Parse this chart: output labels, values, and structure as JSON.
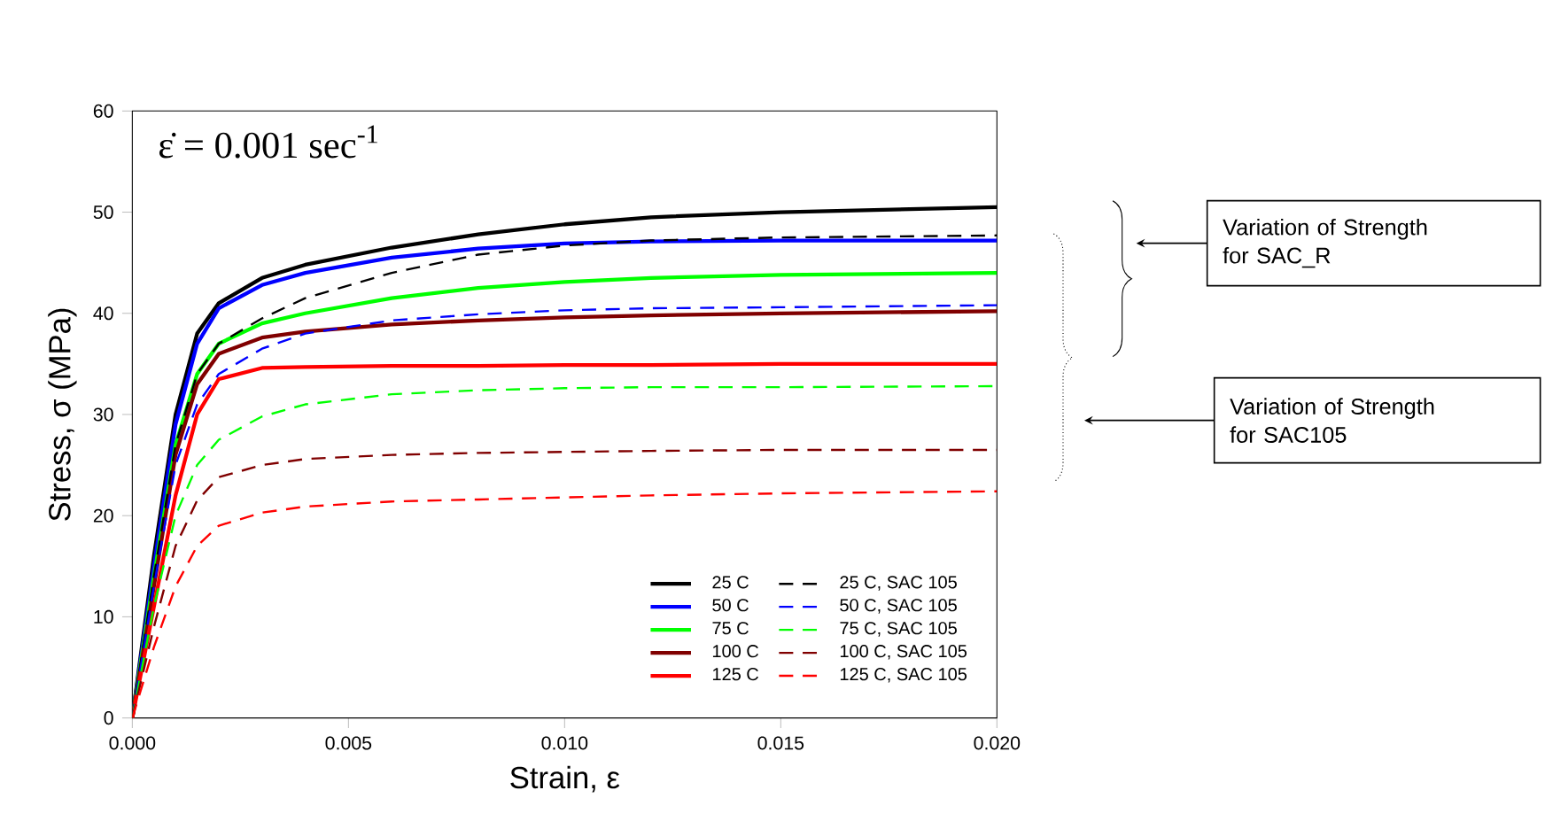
{
  "chart_data": {
    "type": "line",
    "xlabel": "Strain, ε",
    "ylabel": "Stress, σ (MPa)",
    "x": [
      0,
      0.0005,
      0.001,
      0.0015,
      0.002,
      0.003,
      0.004,
      0.006,
      0.008,
      0.01,
      0.012,
      0.015,
      0.02
    ],
    "series": [
      {
        "name": "25 C",
        "color": "#000000",
        "line_style": "solid",
        "values": [
          0,
          16,
          30,
          38,
          41,
          43.5,
          44.8,
          46.5,
          47.8,
          48.8,
          49.5,
          50,
          50.5
        ]
      },
      {
        "name": "50 C",
        "color": "#0000ff",
        "line_style": "solid",
        "values": [
          0,
          15,
          29,
          37,
          40.5,
          42.8,
          44,
          45.5,
          46.4,
          46.9,
          47.1,
          47.2,
          47.2
        ]
      },
      {
        "name": "75 C",
        "color": "#00ff00",
        "line_style": "solid",
        "values": [
          0,
          14,
          27,
          34,
          37,
          39,
          40,
          41.5,
          42.5,
          43.1,
          43.5,
          43.8,
          44
        ]
      },
      {
        "name": "100 C",
        "color": "#800000",
        "line_style": "solid",
        "values": [
          0,
          13,
          26,
          33,
          36,
          37.6,
          38.2,
          38.9,
          39.3,
          39.6,
          39.8,
          40,
          40.2
        ]
      },
      {
        "name": "125 C",
        "color": "#ff0000",
        "line_style": "solid",
        "values": [
          0,
          11,
          22,
          30,
          33.5,
          34.6,
          34.7,
          34.8,
          34.8,
          34.9,
          34.9,
          35,
          35
        ]
      },
      {
        "name": "25 C, SAC 105",
        "color": "#000000",
        "line_style": "dashed",
        "values": [
          0,
          14,
          27,
          34,
          37,
          39.5,
          41.5,
          44,
          45.8,
          46.7,
          47.2,
          47.5,
          47.7
        ]
      },
      {
        "name": "50 C, SAC 105",
        "color": "#0000ff",
        "line_style": "dashed",
        "values": [
          0,
          13,
          25,
          31,
          34,
          36.5,
          38,
          39.3,
          39.9,
          40.3,
          40.5,
          40.6,
          40.8
        ]
      },
      {
        "name": "75 C, SAC 105",
        "color": "#00ff00",
        "line_style": "dashed",
        "values": [
          0,
          11,
          20,
          25,
          27.5,
          29.8,
          31,
          32,
          32.4,
          32.6,
          32.7,
          32.7,
          32.8
        ]
      },
      {
        "name": "100 C, SAC 105",
        "color": "#800000",
        "line_style": "dashed",
        "values": [
          0,
          9,
          17,
          21.5,
          23.8,
          25,
          25.6,
          26,
          26.2,
          26.3,
          26.4,
          26.5,
          26.5
        ]
      },
      {
        "name": "125 C, SAC 105",
        "color": "#ff0000",
        "line_style": "dashed",
        "values": [
          0,
          7,
          13,
          17,
          19,
          20.3,
          20.9,
          21.4,
          21.6,
          21.8,
          22,
          22.2,
          22.4
        ]
      }
    ],
    "xlim": [
      0,
      0.02
    ],
    "ylim": [
      0,
      60
    ],
    "xticks": [
      {
        "value": 0,
        "label": "0.000"
      },
      {
        "value": 0.005,
        "label": "0.005"
      },
      {
        "value": 0.01,
        "label": "0.010"
      },
      {
        "value": 0.015,
        "label": "0.015"
      },
      {
        "value": 0.02,
        "label": "0.020"
      }
    ],
    "yticks": [
      0,
      10,
      20,
      30,
      40,
      50,
      60
    ],
    "legend": "bottom right",
    "annotations": [
      "ε̇ = 0.001 sec$^{-1}$",
      "Variation of Strength for SAC_R",
      "Variation of Strength for SAC105"
    ]
  }
}
